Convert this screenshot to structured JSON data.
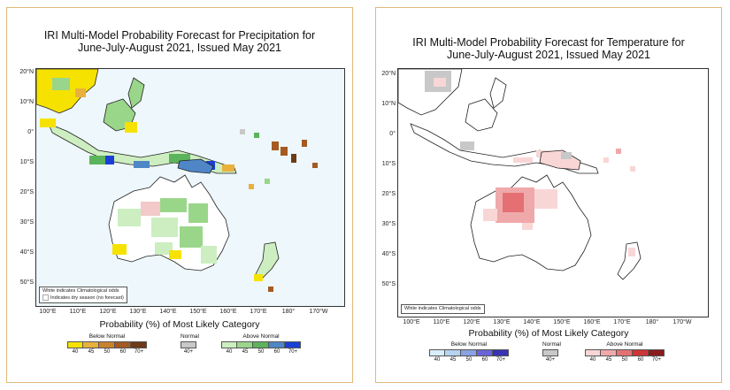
{
  "precip": {
    "title_line1": "IRI Multi-Model Probability Forecast for Precipitation for",
    "title_line2": "June-July-August 2021, Issued May 2021",
    "note_line1": "White indicates Climatological odds",
    "note_line2": "Indicates dry season (no forecast)",
    "prob_label": "Probability (%) of Most Likely Category",
    "below_label": "Below Normal",
    "normal_label": "Normal",
    "above_label": "Above Normal",
    "below_ticks": [
      "40",
      "45",
      "50",
      "60",
      "70+"
    ],
    "above_ticks": [
      "40",
      "45",
      "50",
      "60",
      "70+"
    ],
    "normal_tick": "40+",
    "below_colors": [
      "#f6e200",
      "#e8b13c",
      "#c9822c",
      "#a45a22",
      "#6e3a17"
    ],
    "normal_color": "#c8c8c8",
    "above_colors": [
      "#cdeec0",
      "#9ad68a",
      "#5bb35c",
      "#4f86c6",
      "#1a3fd6"
    ]
  },
  "temp": {
    "title_line1": "IRI Multi-Model Probability Forecast for Temperature for",
    "title_line2": "June-July-August 2021, Issued May 2021",
    "note_line1": "White indicates Climatological odds",
    "prob_label": "Probability (%) of Most Likely Category",
    "below_label": "Below Normal",
    "normal_label": "Normal",
    "above_label": "Above Normal",
    "below_ticks": [
      "40",
      "45",
      "50",
      "60",
      "70+"
    ],
    "above_ticks": [
      "40",
      "45",
      "50",
      "60",
      "70+"
    ],
    "normal_tick": "40+",
    "below_colors": [
      "#d8eefa",
      "#b6d3f0",
      "#8aa2e4",
      "#6a64d8",
      "#3a33b3"
    ],
    "normal_color": "#c8c8c8",
    "above_colors": [
      "#f9d6d6",
      "#f0a9aa",
      "#e47073",
      "#cf3536",
      "#8b1b1b"
    ]
  },
  "precip_lat_labels": [
    "20°N",
    "10°N",
    "0°",
    "10°S",
    "20°S",
    "30°S",
    "40°S",
    "50°S"
  ],
  "precip_lon_labels": [
    "100°E",
    "110°E",
    "120°E",
    "130°E",
    "140°E",
    "150°E",
    "160°E",
    "170°E",
    "180°",
    "170°W"
  ],
  "temp_lat_labels": [
    "20°N",
    "10°N",
    "0°",
    "10°S",
    "20°S",
    "30°S",
    "40°S",
    "50°S"
  ],
  "temp_lon_labels": [
    "100°E",
    "110°E",
    "120°E",
    "130°E",
    "140°E",
    "150°E",
    "160°E",
    "170°E",
    "180°",
    "170°W"
  ]
}
